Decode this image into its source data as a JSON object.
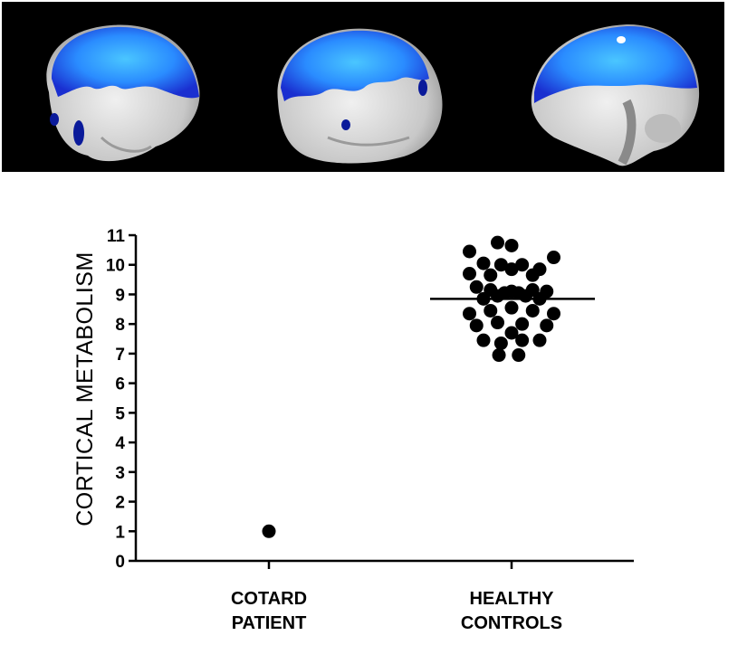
{
  "figure": {
    "brain_images": [
      {
        "view": "left-lateral"
      },
      {
        "view": "right-lateral"
      },
      {
        "view": "medial"
      }
    ],
    "colors": {
      "background": "#000000",
      "cortex": "#d8d8d8",
      "hypometabolism_core": "#3fb6ff",
      "hypometabolism_edge": "#1a2fd0",
      "deep_blue": "#0a1a9a"
    }
  },
  "chart_data": {
    "type": "scatter",
    "title": "",
    "xlabel": "",
    "ylabel": "CORTICAL METABOLISM",
    "ylim": [
      0,
      11
    ],
    "yticks": [
      "0",
      "1",
      "2",
      "3",
      "4",
      "5",
      "6",
      "7",
      "8",
      "9",
      "10",
      "11"
    ],
    "categories": [
      {
        "id": "cotard",
        "line1": "COTARD",
        "line2": "PATIENT"
      },
      {
        "id": "controls",
        "line1": "HEALTHY",
        "line2": "CONTROLS"
      }
    ],
    "series": [
      {
        "name": "COTARD PATIENT",
        "category": 0,
        "points": [
          {
            "offset": 0,
            "y": 1.0
          }
        ]
      },
      {
        "name": "HEALTHY CONTROLS",
        "category": 1,
        "mean": 8.85,
        "points": [
          {
            "offset": -3,
            "y": 10.45
          },
          {
            "offset": -1,
            "y": 10.75
          },
          {
            "offset": 0,
            "y": 10.65
          },
          {
            "offset": 3,
            "y": 10.25
          },
          {
            "offset": -2,
            "y": 10.05
          },
          {
            "offset": -0.75,
            "y": 10.0
          },
          {
            "offset": 0.75,
            "y": 10.0
          },
          {
            "offset": 2,
            "y": 9.85
          },
          {
            "offset": -3,
            "y": 9.7
          },
          {
            "offset": -1.5,
            "y": 9.65
          },
          {
            "offset": 0,
            "y": 9.85
          },
          {
            "offset": 1.5,
            "y": 9.65
          },
          {
            "offset": -2.5,
            "y": 9.25
          },
          {
            "offset": -1.5,
            "y": 9.15
          },
          {
            "offset": -0.5,
            "y": 9.05
          },
          {
            "offset": 0.5,
            "y": 9.05
          },
          {
            "offset": 1.5,
            "y": 9.15
          },
          {
            "offset": 2.5,
            "y": 9.1
          },
          {
            "offset": -2,
            "y": 8.85
          },
          {
            "offset": -1,
            "y": 8.95
          },
          {
            "offset": 0,
            "y": 9.1
          },
          {
            "offset": 1,
            "y": 8.95
          },
          {
            "offset": 2,
            "y": 8.85
          },
          {
            "offset": -3,
            "y": 8.35
          },
          {
            "offset": -1.5,
            "y": 8.45
          },
          {
            "offset": 0,
            "y": 8.55
          },
          {
            "offset": 1.5,
            "y": 8.45
          },
          {
            "offset": 3,
            "y": 8.35
          },
          {
            "offset": -2.5,
            "y": 7.95
          },
          {
            "offset": -1,
            "y": 8.05
          },
          {
            "offset": 0.75,
            "y": 8.0
          },
          {
            "offset": 2.5,
            "y": 7.95
          },
          {
            "offset": -2,
            "y": 7.45
          },
          {
            "offset": -0.75,
            "y": 7.35
          },
          {
            "offset": 0,
            "y": 7.7
          },
          {
            "offset": 0.75,
            "y": 7.45
          },
          {
            "offset": 2,
            "y": 7.45
          },
          {
            "offset": -0.9,
            "y": 6.95
          },
          {
            "offset": 0.5,
            "y": 6.95
          }
        ]
      }
    ]
  }
}
